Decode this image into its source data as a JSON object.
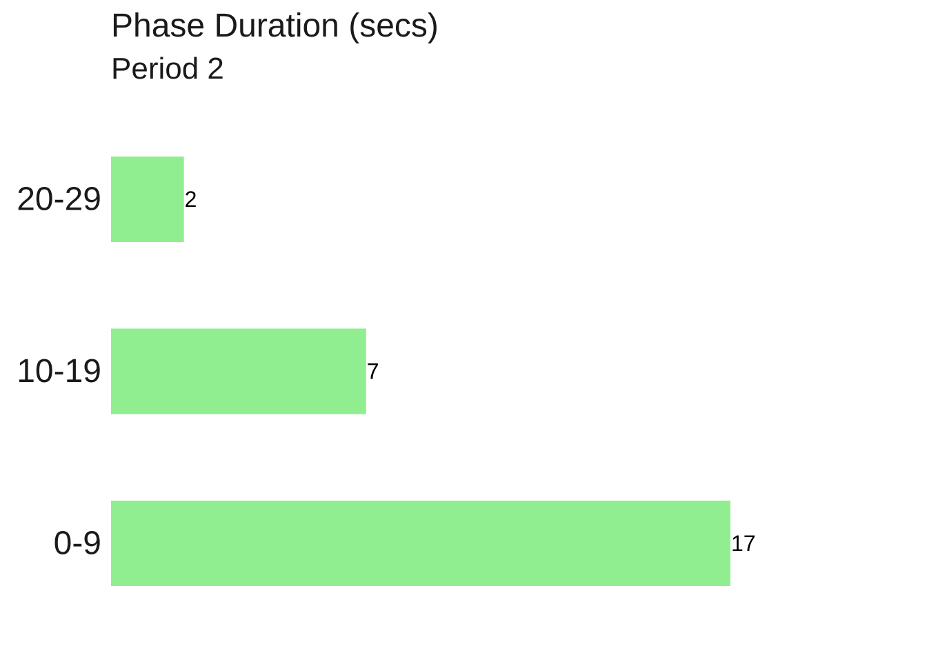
{
  "chart_data": {
    "type": "bar",
    "orientation": "horizontal",
    "title": "Phase Duration (secs)",
    "subtitle": "Period 2",
    "categories": [
      "0-9",
      "10-19",
      "20-29"
    ],
    "values": [
      17,
      7,
      2
    ],
    "xlabel": "",
    "ylabel": "",
    "xlim": [
      0,
      17
    ],
    "grid": false,
    "legend": "none",
    "bar_color": "#90EE90",
    "data_labels": true
  }
}
